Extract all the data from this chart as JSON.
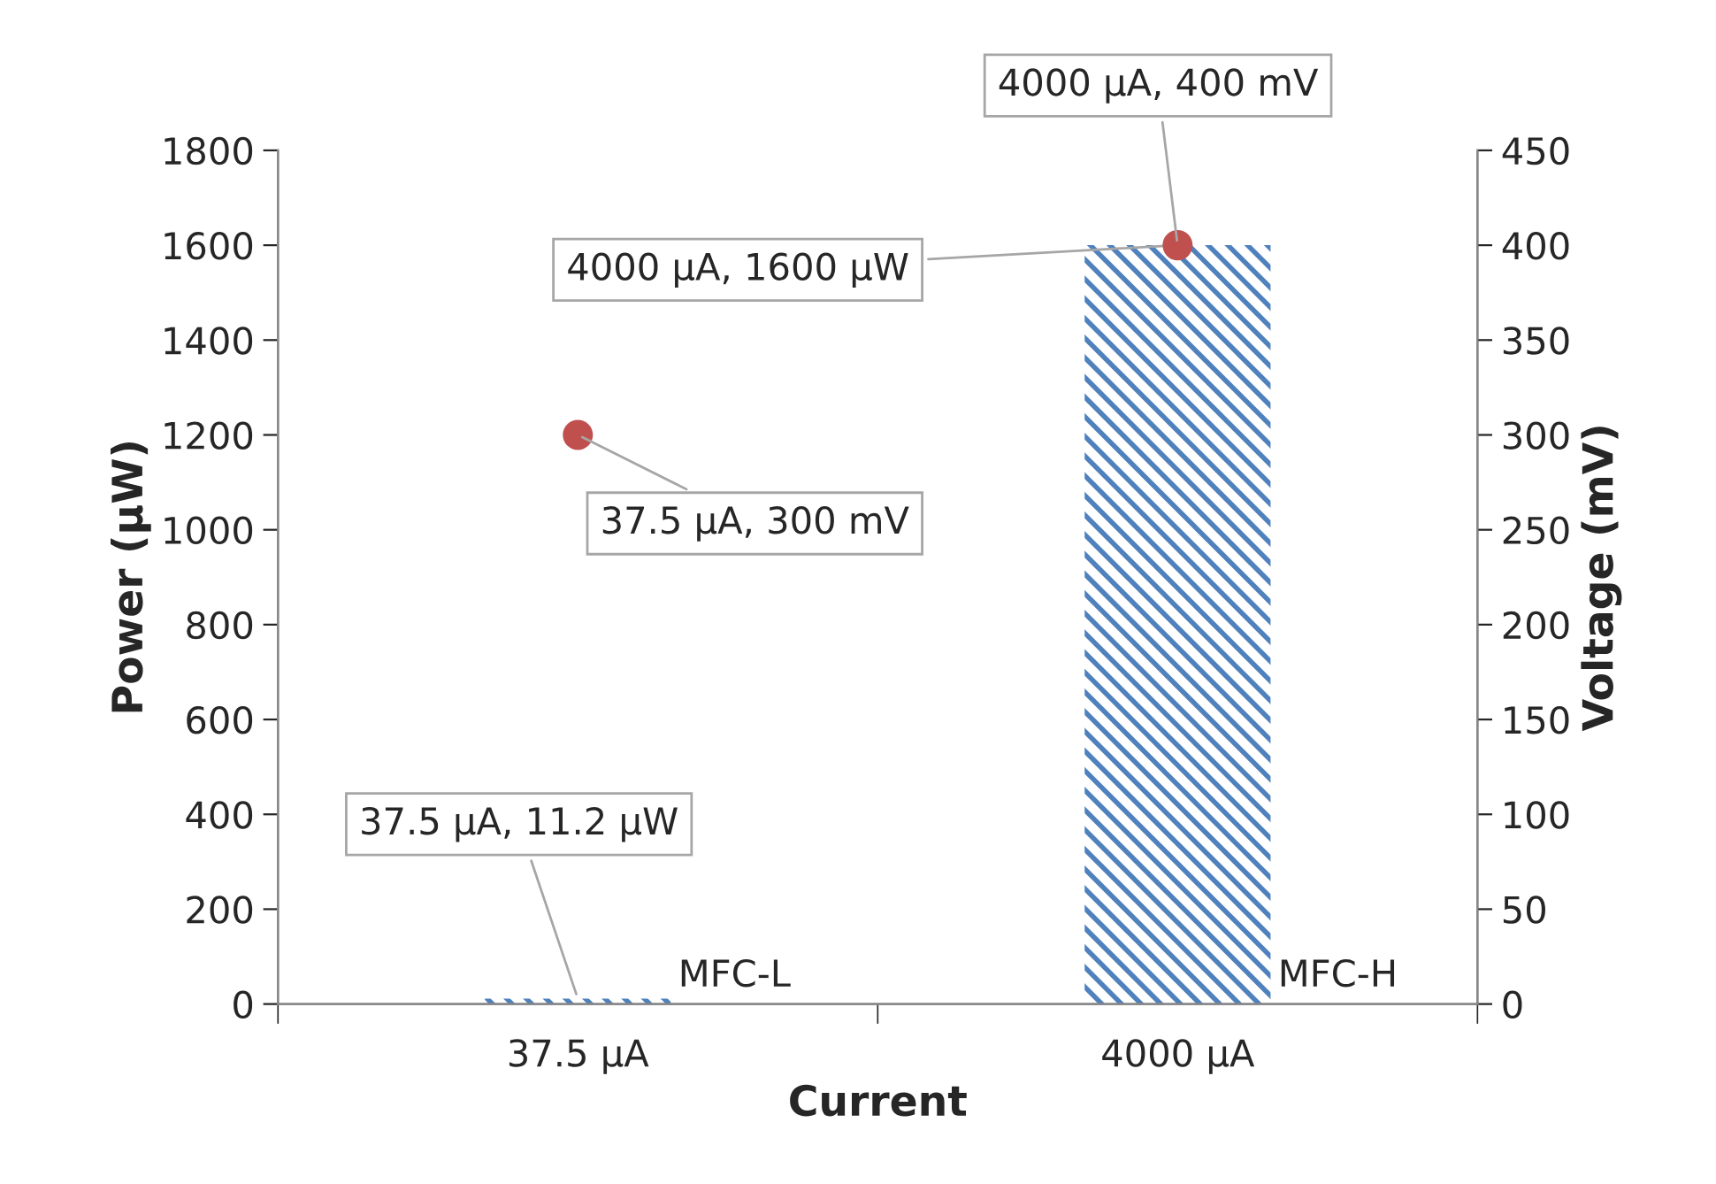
{
  "chart_data": {
    "type": "bar",
    "xlabel": "Current",
    "ylabel": "Power (µW)",
    "y2label": "Voltage (mV)",
    "categories": [
      "37.5 µA",
      "4000 µA"
    ],
    "series": [
      {
        "color": "#4f81bd",
        "values": [
          11.2,
          1600
        ],
        "value_labels": [
          "37.5 µA, 11.2 µW",
          "4000 µA, 1600 µW"
        ]
      },
      {
        "type": "scatter",
        "axis": "y2",
        "color": "#c0504d",
        "marker": "circle",
        "values": [
          300,
          400
        ],
        "value_labels": [
          "37.5 µA, 300 mV",
          "4000 µA, 400 mV"
        ]
      }
    ],
    "ylim": [
      0,
      1800
    ],
    "yticks": [
      0,
      200,
      400,
      600,
      800,
      1000,
      1200,
      1400,
      1600,
      1800
    ],
    "y2lim": [
      0,
      450
    ],
    "y2ticks": [
      0,
      50,
      100,
      150,
      200,
      250,
      300,
      350,
      400,
      450
    ],
    "annotations": [
      {
        "text": "MFC-L",
        "x": "37.5 µA",
        "y": 0
      },
      {
        "text": "MFC-H",
        "x": "4000 µA",
        "y": 0
      }
    ],
    "grid": false,
    "legend": false
  }
}
